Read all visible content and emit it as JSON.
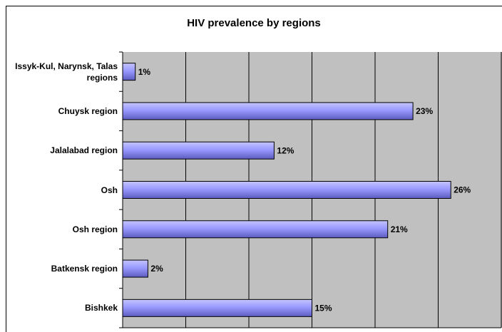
{
  "chart_data": {
    "type": "barh",
    "title": "HIV prevalence by regions",
    "categories": [
      "Issyk-Kul, Narynsk, Talas regions",
      "Chuysk region",
      "Jalalabad region",
      "Osh",
      "Osh region",
      "Batkensk region",
      "Bishkek"
    ],
    "values": [
      1,
      23,
      12,
      26,
      21,
      2,
      15
    ],
    "value_labels": [
      "1%",
      "23%",
      "12%",
      "26%",
      "21%",
      "2%",
      "15%"
    ],
    "color": "#9999ff",
    "xlim": [
      0,
      30
    ],
    "xticks": [
      0,
      5,
      10,
      15,
      20,
      25,
      30
    ],
    "grid": true
  }
}
